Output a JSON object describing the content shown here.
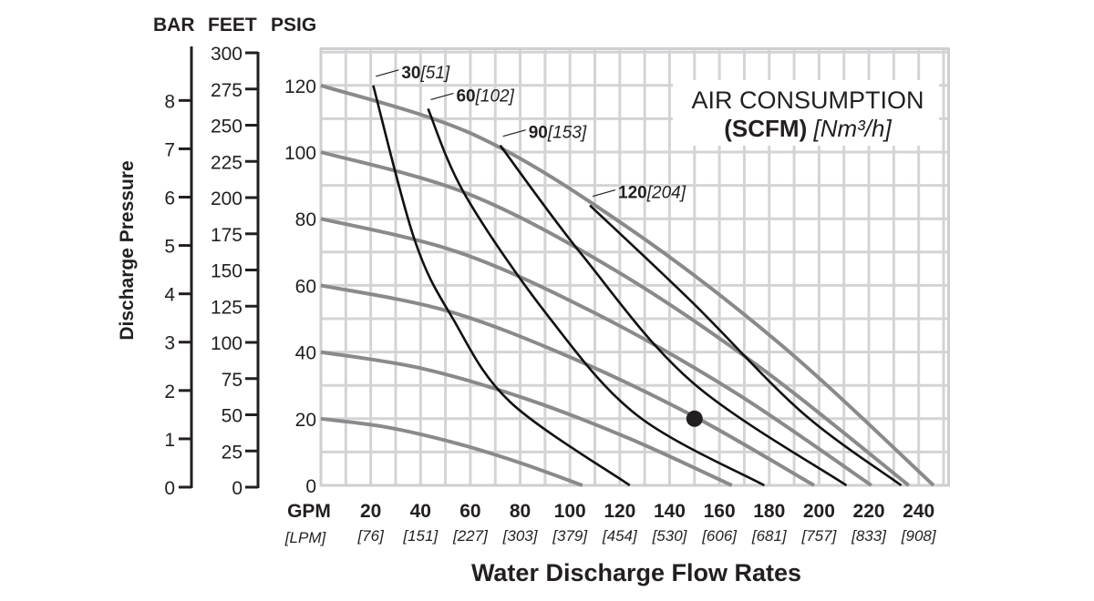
{
  "chart_data": {
    "type": "line",
    "title": "",
    "xlabel": "Water Discharge Flow Rates",
    "ylabel": "Discharge Pressure",
    "x_unit_primary": "GPM",
    "x_unit_secondary": "[LPM]",
    "xlim": [
      0,
      252
    ],
    "ylim": [
      0,
      131
    ],
    "grid": true,
    "x_ticks": [
      20,
      40,
      60,
      80,
      100,
      120,
      140,
      160,
      180,
      200,
      220,
      240
    ],
    "x_ticks_lpm": [
      "[76]",
      "[151]",
      "[227]",
      "[303]",
      "[379]",
      "[454]",
      "[530]",
      "[606]",
      "[681]",
      "[757]",
      "[833]",
      "[908]"
    ],
    "y_axes": {
      "psig": {
        "label": "PSIG",
        "ticks": [
          0,
          20,
          40,
          60,
          80,
          100,
          120
        ]
      },
      "feet": {
        "label": "FEET",
        "ticks": [
          0,
          25,
          50,
          75,
          100,
          125,
          150,
          175,
          200,
          225,
          250,
          275,
          300
        ]
      },
      "bar": {
        "label": "BAR",
        "ticks": [
          0,
          1,
          2,
          3,
          4,
          5,
          6,
          7,
          8
        ]
      }
    },
    "legend": {
      "line1": "AIR CONSUMPTION",
      "line2_bold": "(SCFM)",
      "line2_italic": "[Nm³/h]",
      "placement": "top-right"
    },
    "performance_curves_color": "#8a8a8c",
    "air_curves_color": "#111111",
    "performance_curves": [
      {
        "psig_at_zero_flow": 120,
        "points": [
          [
            0,
            120
          ],
          [
            62,
            105
          ],
          [
            123,
            77.5
          ],
          [
            185,
            42
          ],
          [
            246,
            0
          ]
        ]
      },
      {
        "psig_at_zero_flow": 100,
        "points": [
          [
            0,
            100
          ],
          [
            59,
            87.5
          ],
          [
            118,
            64.6
          ],
          [
            177,
            35
          ],
          [
            236,
            0
          ]
        ]
      },
      {
        "psig_at_zero_flow": 80,
        "points": [
          [
            0,
            80
          ],
          [
            55,
            70
          ],
          [
            110,
            51.7
          ],
          [
            166,
            28
          ],
          [
            221,
            0
          ]
        ]
      },
      {
        "psig_at_zero_flow": 60,
        "points": [
          [
            0,
            60
          ],
          [
            50,
            52.5
          ],
          [
            99,
            38.8
          ],
          [
            149,
            21
          ],
          [
            198,
            0
          ]
        ]
      },
      {
        "psig_at_zero_flow": 40,
        "points": [
          [
            0,
            40
          ],
          [
            41,
            35
          ],
          [
            83,
            25.8
          ],
          [
            124,
            14
          ],
          [
            165,
            0
          ]
        ]
      },
      {
        "psig_at_zero_flow": 20,
        "points": [
          [
            0,
            20
          ],
          [
            26,
            17.5
          ],
          [
            53,
            12.9
          ],
          [
            79,
            7
          ],
          [
            105,
            0
          ]
        ]
      }
    ],
    "air_consumption_curves": [
      {
        "scfm": "30",
        "nm3h": "[51]",
        "points": [
          [
            21,
            120
          ],
          [
            37.6,
            73.7
          ],
          [
            53,
            50
          ],
          [
            76,
            25
          ],
          [
            124,
            0
          ]
        ]
      },
      {
        "scfm": "60",
        "nm3h": "[102]",
        "points": [
          [
            43,
            113
          ],
          [
            58,
            87
          ],
          [
            91,
            51
          ],
          [
            127,
            21
          ],
          [
            178,
            0
          ]
        ]
      },
      {
        "scfm": "90",
        "nm3h": "[153]",
        "points": [
          [
            72,
            102
          ],
          [
            105,
            69
          ],
          [
            149,
            31
          ],
          [
            211,
            0
          ]
        ]
      },
      {
        "scfm": "120",
        "nm3h": "[204]",
        "points": [
          [
            108,
            84
          ],
          [
            149,
            55
          ],
          [
            193,
            22
          ],
          [
            233,
            0
          ]
        ]
      }
    ],
    "marker": {
      "gpm": 150,
      "psig": 20
    }
  }
}
